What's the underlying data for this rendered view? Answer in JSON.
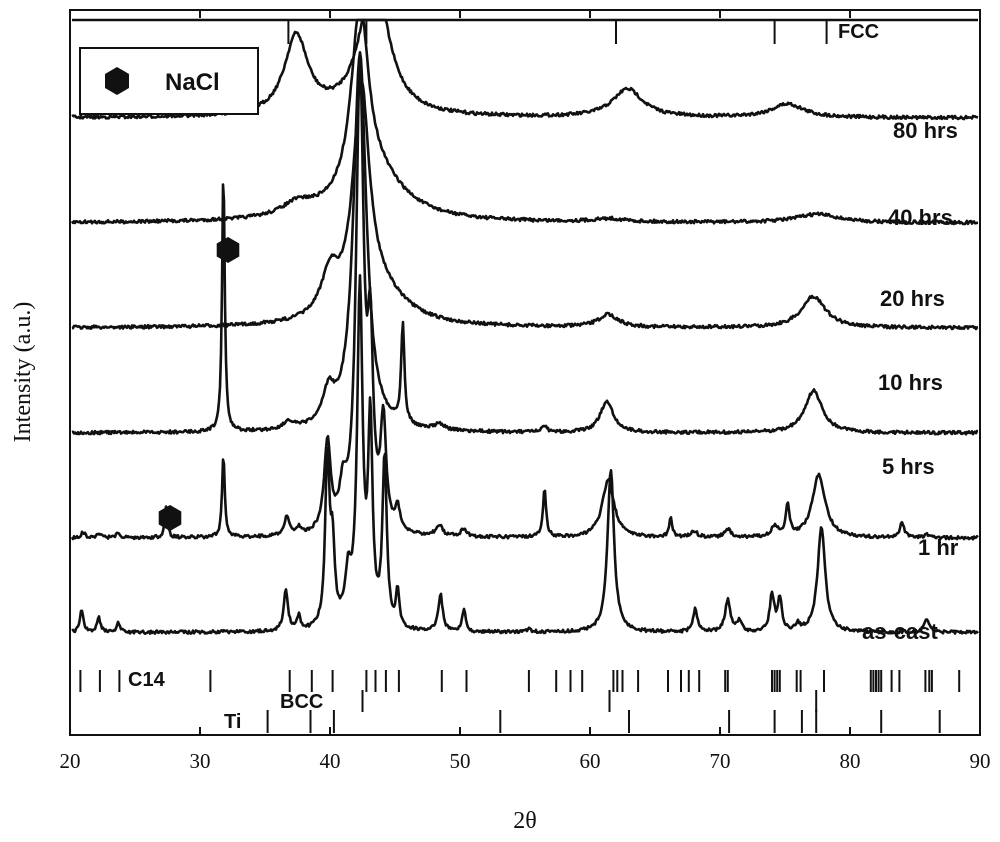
{
  "chart_data": {
    "type": "line",
    "title": "",
    "xlabel": "2θ",
    "ylabel": "Intensity (a.u.)",
    "xlim": [
      20,
      90
    ],
    "xticks": [
      20,
      30,
      40,
      50,
      60,
      70,
      80,
      90
    ],
    "y_scale": "arbitrary units, traces vertically offset",
    "grid": false,
    "legend": {
      "placement": "top-left",
      "entries": [
        {
          "icon": "hexagon-icon",
          "label": "NaCl"
        }
      ]
    },
    "series": [
      {
        "name": "80 hrs",
        "offset": 7.4,
        "peaks": [
          {
            "x": 36.9,
            "h": 1.05,
            "w": 1.1
          },
          {
            "x": 42.9,
            "h": 1.55,
            "w": 1.2
          },
          {
            "x": 61.9,
            "h": 0.48,
            "w": 1.4
          },
          {
            "x": 74.4,
            "h": 0.16,
            "w": 1.5
          },
          {
            "x": 77.8,
            "h": 0.08,
            "w": 1.5
          }
        ]
      },
      {
        "name": "40 hrs",
        "offset": 6.4,
        "peaks": [
          {
            "x": 37.4,
            "h": 0.75,
            "w": 1.1
          },
          {
            "x": 43.4,
            "h": 1.35,
            "w": 1.3
          },
          {
            "x": 62.9,
            "h": 0.27,
            "w": 1.4
          },
          {
            "x": 75.2,
            "h": 0.13,
            "w": 1.5
          }
        ]
      },
      {
        "name": "20 hrs",
        "offset": 5.4,
        "peaks": [
          {
            "x": 37.5,
            "h": 0.12,
            "w": 1.5
          },
          {
            "x": 42.3,
            "h": 1.75,
            "w": 0.8
          },
          {
            "x": 43.5,
            "h": 0.4,
            "w": 2.8
          },
          {
            "x": 61.5,
            "h": 0.03,
            "w": 1.5
          },
          {
            "x": 77.5,
            "h": 0.08,
            "w": 2.0
          }
        ]
      },
      {
        "name": "10 hrs",
        "offset": 4.4,
        "peaks": [
          {
            "x": 40.0,
            "h": 0.4,
            "w": 0.8
          },
          {
            "x": 42.4,
            "h": 2.1,
            "w": 0.75
          },
          {
            "x": 43.8,
            "h": 0.3,
            "w": 2.5
          },
          {
            "x": 61.4,
            "h": 0.12,
            "w": 0.9
          },
          {
            "x": 77.2,
            "h": 0.3,
            "w": 1.1
          }
        ]
      },
      {
        "name": "5 hrs",
        "offset": 3.4,
        "peaks": [
          {
            "x": 31.8,
            "h": 2.5,
            "w": 0.12
          },
          {
            "x": 36.8,
            "h": 0.07,
            "w": 0.5
          },
          {
            "x": 39.9,
            "h": 0.3,
            "w": 0.55
          },
          {
            "x": 42.3,
            "h": 3.6,
            "w": 0.6
          },
          {
            "x": 45.6,
            "h": 0.95,
            "w": 0.15
          },
          {
            "x": 48.4,
            "h": 0.06,
            "w": 0.4
          },
          {
            "x": 56.5,
            "h": 0.06,
            "w": 0.2
          },
          {
            "x": 61.3,
            "h": 0.3,
            "w": 0.6
          },
          {
            "x": 77.2,
            "h": 0.4,
            "w": 0.8
          }
        ]
      },
      {
        "name": "1 hr",
        "offset": 2.4,
        "peaks": [
          {
            "x": 21.0,
            "h": 0.05,
            "w": 0.2
          },
          {
            "x": 22.2,
            "h": 0.04,
            "w": 0.2
          },
          {
            "x": 23.7,
            "h": 0.04,
            "w": 0.2
          },
          {
            "x": 27.4,
            "h": 0.3,
            "w": 0.12
          },
          {
            "x": 31.8,
            "h": 0.8,
            "w": 0.12
          },
          {
            "x": 36.7,
            "h": 0.18,
            "w": 0.25
          },
          {
            "x": 37.6,
            "h": 0.06,
            "w": 0.2
          },
          {
            "x": 39.8,
            "h": 0.85,
            "w": 0.3
          },
          {
            "x": 41.0,
            "h": 0.35,
            "w": 0.3
          },
          {
            "x": 42.3,
            "h": 4.4,
            "w": 0.35
          },
          {
            "x": 43.1,
            "h": 1.6,
            "w": 0.25
          },
          {
            "x": 44.1,
            "h": 1.0,
            "w": 0.25
          },
          {
            "x": 45.2,
            "h": 0.22,
            "w": 0.2
          },
          {
            "x": 48.4,
            "h": 0.1,
            "w": 0.3
          },
          {
            "x": 50.3,
            "h": 0.07,
            "w": 0.3
          },
          {
            "x": 56.5,
            "h": 0.45,
            "w": 0.15
          },
          {
            "x": 61.4,
            "h": 0.55,
            "w": 0.55
          },
          {
            "x": 66.2,
            "h": 0.18,
            "w": 0.15
          },
          {
            "x": 68.0,
            "h": 0.06,
            "w": 0.3
          },
          {
            "x": 70.6,
            "h": 0.08,
            "w": 0.3
          },
          {
            "x": 74.2,
            "h": 0.1,
            "w": 0.3
          },
          {
            "x": 75.2,
            "h": 0.3,
            "w": 0.18
          },
          {
            "x": 77.6,
            "h": 0.6,
            "w": 0.6
          },
          {
            "x": 84.0,
            "h": 0.15,
            "w": 0.2
          },
          {
            "x": 86.0,
            "h": 0.03,
            "w": 0.3
          }
        ]
      },
      {
        "name": "as-cast",
        "offset": 1.5,
        "peaks": [
          {
            "x": 20.9,
            "h": 0.22,
            "w": 0.15
          },
          {
            "x": 22.2,
            "h": 0.15,
            "w": 0.15
          },
          {
            "x": 23.7,
            "h": 0.1,
            "w": 0.15
          },
          {
            "x": 36.6,
            "h": 0.38,
            "w": 0.2
          },
          {
            "x": 37.6,
            "h": 0.13,
            "w": 0.15
          },
          {
            "x": 39.8,
            "h": 1.6,
            "w": 0.2
          },
          {
            "x": 40.2,
            "h": 0.7,
            "w": 0.2
          },
          {
            "x": 41.4,
            "h": 0.45,
            "w": 0.3
          },
          {
            "x": 42.3,
            "h": 3.2,
            "w": 0.25
          },
          {
            "x": 43.1,
            "h": 1.9,
            "w": 0.2
          },
          {
            "x": 44.2,
            "h": 1.6,
            "w": 0.2
          },
          {
            "x": 45.2,
            "h": 0.35,
            "w": 0.15
          },
          {
            "x": 48.5,
            "h": 0.35,
            "w": 0.2
          },
          {
            "x": 50.3,
            "h": 0.22,
            "w": 0.15
          },
          {
            "x": 55.3,
            "h": 0.03,
            "w": 0.2
          },
          {
            "x": 61.6,
            "h": 1.55,
            "w": 0.3
          },
          {
            "x": 68.1,
            "h": 0.22,
            "w": 0.2
          },
          {
            "x": 70.6,
            "h": 0.3,
            "w": 0.25
          },
          {
            "x": 71.5,
            "h": 0.1,
            "w": 0.2
          },
          {
            "x": 74.0,
            "h": 0.35,
            "w": 0.2
          },
          {
            "x": 74.6,
            "h": 0.3,
            "w": 0.2
          },
          {
            "x": 76.0,
            "h": 0.06,
            "w": 0.2
          },
          {
            "x": 77.8,
            "h": 1.0,
            "w": 0.35
          },
          {
            "x": 85.9,
            "h": 0.12,
            "w": 0.25
          }
        ]
      }
    ],
    "reference_markers": [
      {
        "name": "FCC",
        "row": "top",
        "positions": [
          36.8,
          42.8,
          62.0,
          74.2,
          78.2
        ]
      },
      {
        "name": "C14",
        "row": "bottom-1",
        "positions": [
          20.8,
          22.3,
          23.8,
          30.8,
          36.9,
          38.6,
          40.2,
          42.8,
          43.5,
          44.3,
          45.3,
          48.6,
          50.5,
          55.3,
          57.4,
          58.5,
          59.4,
          61.8,
          62.1,
          62.5,
          63.7,
          66.0,
          67.0,
          67.6,
          68.4,
          70.4,
          70.6,
          74.0,
          74.2,
          74.4,
          74.6,
          75.9,
          76.2,
          78.0,
          81.6,
          81.8,
          82.0,
          82.2,
          82.4,
          83.2,
          83.8,
          85.8,
          86.1,
          86.3,
          88.4
        ]
      },
      {
        "name": "BCC",
        "row": "bottom-2",
        "positions": [
          42.5,
          61.5,
          77.4
        ]
      },
      {
        "name": "Ti",
        "row": "bottom-3",
        "positions": [
          35.2,
          38.5,
          40.3,
          53.1,
          63.0,
          70.7,
          74.2,
          76.3,
          77.4,
          82.4,
          86.9
        ]
      }
    ],
    "nacl_markers": [
      {
        "x": 27.6,
        "trace": "1 hr"
      },
      {
        "x": 32.3,
        "trace": "5 hrs"
      }
    ]
  }
}
